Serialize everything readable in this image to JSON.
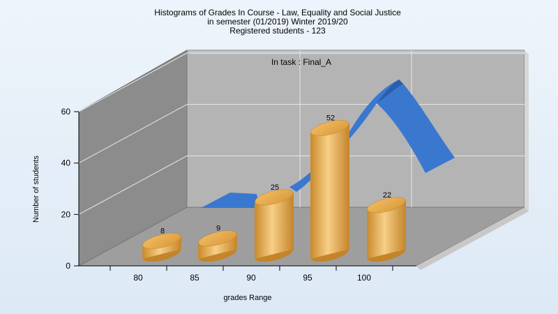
{
  "chart_data": {
    "type": "bar",
    "title_lines": [
      "Histograms of Grades  In Course - Law, Equality and Social Justice",
      "in semester  (01/2019) Winter 2019/20",
      "Registered students - 123"
    ],
    "annotation": "In task : Final_A",
    "xlabel": "grades Range",
    "ylabel": "Number of students",
    "categories": [
      "80",
      "85",
      "90",
      "95",
      "100"
    ],
    "values": [
      8,
      9,
      25,
      52,
      22
    ],
    "yticks": [
      0,
      20,
      40,
      60
    ],
    "ylim": [
      0,
      60
    ],
    "grid": true,
    "bar_color": "#e8a23c",
    "curve_color": "#3a78cf",
    "plot_background": "#b4b4b4"
  }
}
